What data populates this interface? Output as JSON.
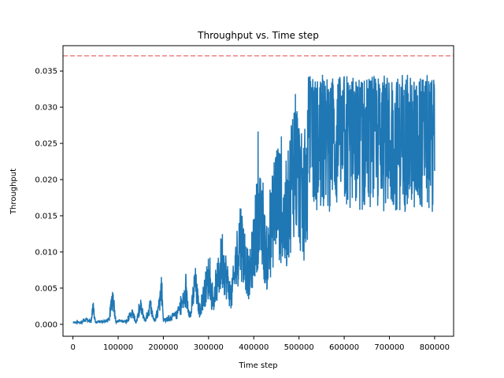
{
  "chart_data": {
    "type": "line",
    "title": "Throughput vs. Time step",
    "xlabel": "Time step",
    "ylabel": "Throughput",
    "xlim": [
      -22000,
      842000
    ],
    "ylim": [
      -0.00165,
      0.0385
    ],
    "xticks": [
      0,
      100000,
      200000,
      300000,
      400000,
      500000,
      600000,
      700000,
      800000
    ],
    "xtick_labels": [
      "0",
      "100000",
      "200000",
      "300000",
      "400000",
      "500000",
      "600000",
      "700000",
      "800000"
    ],
    "yticks": [
      0.0,
      0.005,
      0.01,
      0.015,
      0.02,
      0.025,
      0.03,
      0.035
    ],
    "ytick_labels": [
      "0.000",
      "0.005",
      "0.010",
      "0.015",
      "0.020",
      "0.025",
      "0.030",
      "0.035"
    ],
    "grid": false,
    "reference_line": {
      "y": 0.0371,
      "color": "#f08080",
      "style": "dashed"
    },
    "series_color": "#1f77b4",
    "series": [
      {
        "x_start": 0,
        "x_end": 800000,
        "points": [
          [
            0,
            0.0002
          ],
          [
            20000,
            0.0003
          ],
          [
            25000,
            0.0008
          ],
          [
            40000,
            0.0005
          ],
          [
            45000,
            0.0026
          ],
          [
            50000,
            0.0003
          ],
          [
            60000,
            0.0004
          ],
          [
            80000,
            0.0006
          ],
          [
            88000,
            0.0047
          ],
          [
            95000,
            0.0004
          ],
          [
            100000,
            0.0005
          ],
          [
            120000,
            0.0005
          ],
          [
            130000,
            0.0019
          ],
          [
            140000,
            0.0004
          ],
          [
            150000,
            0.0027
          ],
          [
            160000,
            0.0005
          ],
          [
            170000,
            0.0028
          ],
          [
            180000,
            0.0006
          ],
          [
            190000,
            0.0025
          ],
          [
            200000,
            0.0007
          ],
          [
            196000,
            0.0061
          ],
          [
            210000,
            0.0008
          ],
          [
            230000,
            0.0015
          ],
          [
            250000,
            0.0045
          ],
          [
            260000,
            0.0012
          ],
          [
            270000,
            0.0066
          ],
          [
            280000,
            0.002
          ],
          [
            300000,
            0.0075
          ],
          [
            310000,
            0.003
          ],
          [
            330000,
            0.0105
          ],
          [
            350000,
            0.004
          ],
          [
            370000,
            0.014
          ],
          [
            390000,
            0.007
          ],
          [
            410000,
            0.0175
          ],
          [
            430000,
            0.01
          ],
          [
            450000,
            0.021
          ],
          [
            470000,
            0.015
          ],
          [
            490000,
            0.027
          ],
          [
            510000,
            0.0185
          ],
          [
            530000,
            0.03
          ],
          [
            550000,
            0.019
          ],
          [
            600000,
            0.022
          ],
          [
            650000,
            0.023
          ],
          [
            700000,
            0.0225
          ],
          [
            750000,
            0.023
          ],
          [
            800000,
            0.023
          ]
        ],
        "band_min": 0.0155,
        "band_max": 0.0345
      }
    ]
  }
}
